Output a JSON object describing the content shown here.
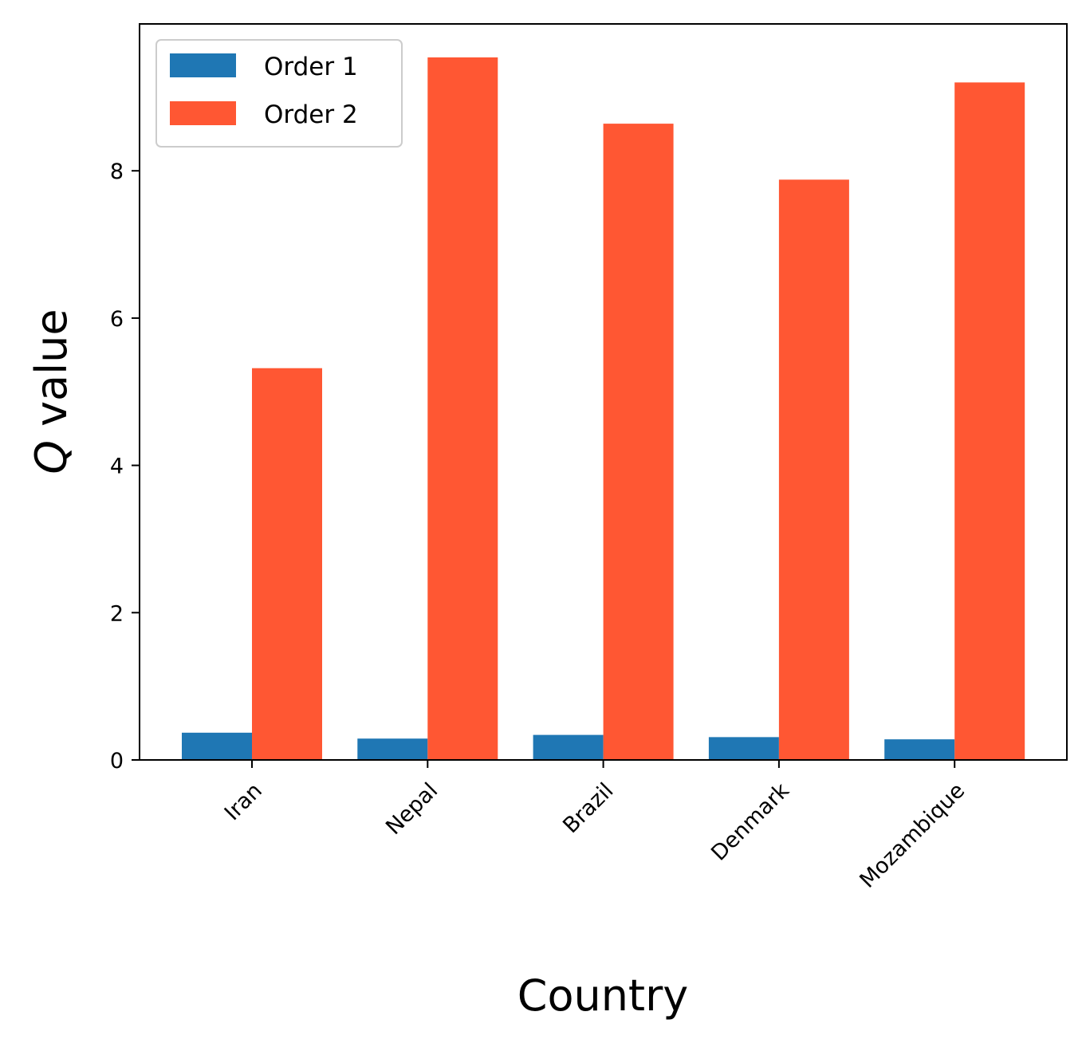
{
  "chart_data": {
    "type": "bar",
    "categories": [
      "Iran",
      "Nepal",
      "Brazil",
      "Denmark",
      "Mozambique"
    ],
    "series": [
      {
        "name": "Order 1",
        "color": "#1f77b4",
        "values": [
          0.37,
          0.29,
          0.34,
          0.31,
          0.28
        ]
      },
      {
        "name": "Order 2",
        "color": "#ff5733",
        "values": [
          5.32,
          9.54,
          8.64,
          7.88,
          9.2
        ]
      }
    ],
    "xlabel": "Country",
    "ylabel_italic": "Q",
    "ylabel_rest": " value",
    "yticks": [
      0,
      2,
      4,
      6,
      8
    ],
    "ylim": [
      0,
      10
    ],
    "legend_position": "upper-left",
    "grid": false
  }
}
